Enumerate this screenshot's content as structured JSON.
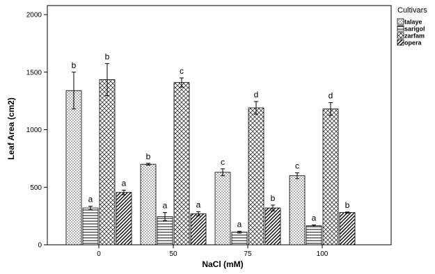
{
  "chart_data": {
    "type": "bar",
    "xlabel": "NaCl (mM)",
    "ylabel": "Leaf Area (cm2)",
    "categories": [
      "0",
      "50",
      "75",
      "100"
    ],
    "ylim": [
      0,
      2000
    ],
    "yticks": [
      0,
      500,
      1000,
      1500,
      2000
    ],
    "grid": false,
    "legend": {
      "title": "Cultivars",
      "position": "right-top"
    },
    "series": [
      {
        "name": "talaye",
        "pattern": "dots",
        "values": [
          1340,
          700,
          630,
          600
        ],
        "errors": [
          160,
          8,
          30,
          25
        ],
        "labels": [
          "b",
          "b",
          "c",
          "c"
        ]
      },
      {
        "name": "sarigol",
        "pattern": "horizontal",
        "values": [
          320,
          245,
          110,
          165
        ],
        "errors": [
          15,
          35,
          8,
          8
        ],
        "labels": [
          "a",
          "a",
          "a",
          "a"
        ]
      },
      {
        "name": "zarfam",
        "pattern": "crosshatch",
        "values": [
          1435,
          1410,
          1190,
          1180
        ],
        "errors": [
          140,
          40,
          55,
          55
        ],
        "labels": [
          "b",
          "c",
          "d",
          "d"
        ]
      },
      {
        "name": "opera",
        "pattern": "diagonal",
        "values": [
          455,
          270,
          320,
          280
        ],
        "errors": [
          20,
          18,
          25,
          5
        ],
        "labels": [
          "a",
          "a",
          "b",
          "b"
        ]
      }
    ]
  }
}
